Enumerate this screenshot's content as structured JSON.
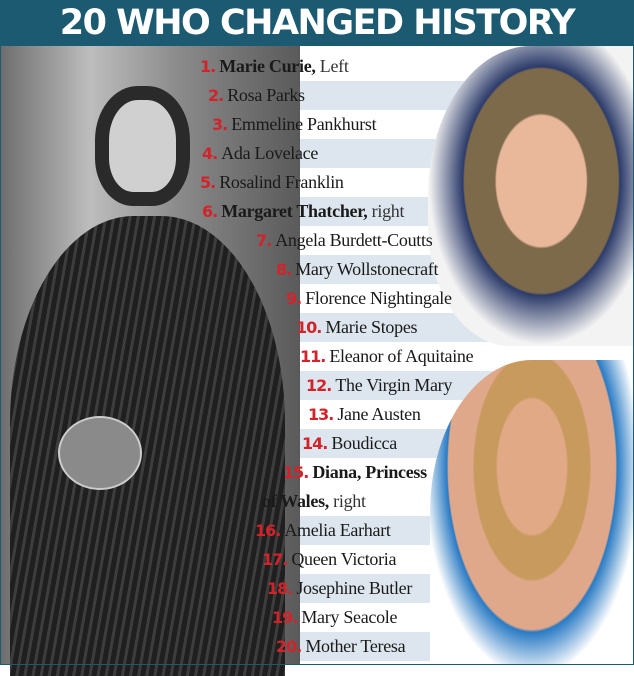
{
  "header": {
    "title": "20 WHO CHANGED HISTORY"
  },
  "colors": {
    "header_bg": "#1b5a70",
    "number": "#d2232a",
    "stripe": "#dde6ee"
  },
  "list": [
    {
      "num": "1.",
      "name": "Marie Curie,",
      "note": " Left",
      "bold": true
    },
    {
      "num": "2.",
      "name": "Rosa Parks"
    },
    {
      "num": "3.",
      "name": "Emmeline Pankhurst"
    },
    {
      "num": "4.",
      "name": "Ada Lovelace"
    },
    {
      "num": "5.",
      "name": "Rosalind Franklin"
    },
    {
      "num": "6.",
      "name": "Margaret Thatcher,",
      "note": " right",
      "bold": true
    },
    {
      "num": "7.",
      "name": "Angela Burdett-Coutts"
    },
    {
      "num": "8.",
      "name": "Mary Wollstonecraft"
    },
    {
      "num": "9.",
      "name": "Florence Nightingale"
    },
    {
      "num": "10.",
      "name": "Marie Stopes"
    },
    {
      "num": "11.",
      "name": "Eleanor of Aquitaine"
    },
    {
      "num": "12.",
      "name": "The Virgin Mary"
    },
    {
      "num": "13.",
      "name": "Jane Austen"
    },
    {
      "num": "14.",
      "name": "Boudicca"
    },
    {
      "num": "15.",
      "name": "Diana, Princess",
      "line2": "of Wales,",
      "note": " right",
      "bold": true
    },
    {
      "num": "16.",
      "name": "Amelia Earhart"
    },
    {
      "num": "17.",
      "name": "Queen Victoria"
    },
    {
      "num": "18.",
      "name": "Josephine Butler"
    },
    {
      "num": "19.",
      "name": "Mary Seacole"
    },
    {
      "num": "20.",
      "name": "Mother Teresa"
    }
  ]
}
